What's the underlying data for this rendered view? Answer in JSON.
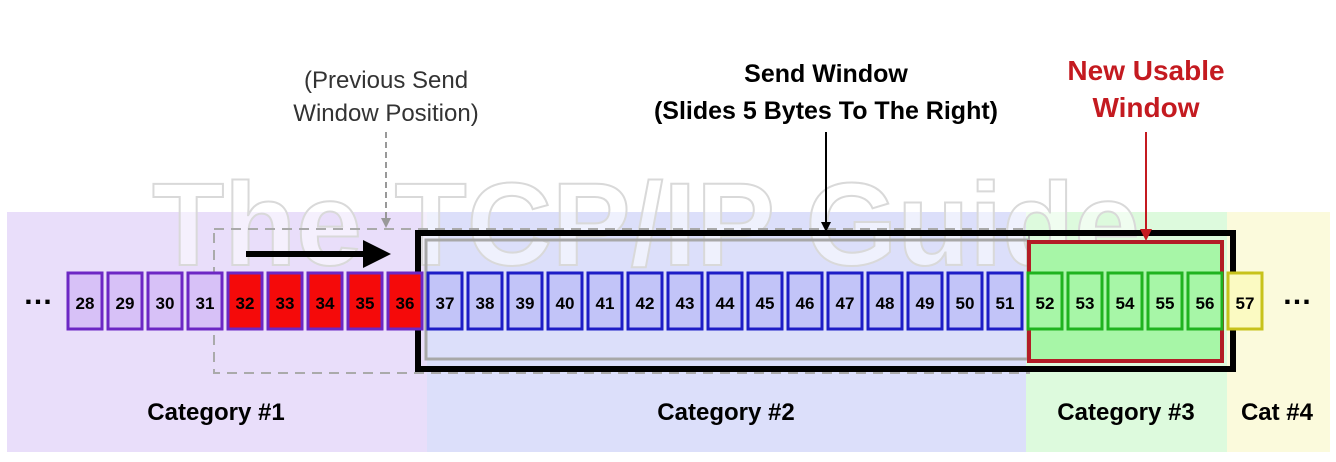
{
  "watermark": "The TCP/IP Guide",
  "labels": {
    "previous_line1": "(Previous Send",
    "previous_line2": "Window Position)",
    "send_line1": "Send Window",
    "send_line2": "(Slides 5 Bytes To The Right)",
    "usable_line1": "New Usable",
    "usable_line2": "Window"
  },
  "ellipsis": {
    "left": "…",
    "right": "…"
  },
  "categories": [
    {
      "label": "Category #1",
      "bg": "#e9defa"
    },
    {
      "label": "Category #2",
      "bg": "#dcdffa"
    },
    {
      "label": "Category #3",
      "bg": "#ddfadd"
    },
    {
      "label": "Cat #4",
      "bg": "#fbfadc"
    }
  ],
  "byte_groups": [
    {
      "name": "cat1-sent-acked",
      "start": 28,
      "end": 31,
      "fill": "#d7c1f7",
      "stroke": "#6c27c4"
    },
    {
      "name": "cat1-newly-acked",
      "start": 32,
      "end": 36,
      "fill": "#f50a0a",
      "stroke": "#6c27c4"
    },
    {
      "name": "cat2-sent-unacked",
      "start": 37,
      "end": 51,
      "fill": "#c2c4f8",
      "stroke": "#1d1dc6"
    },
    {
      "name": "cat3-usable",
      "start": 52,
      "end": 56,
      "fill": "#a7f6a7",
      "stroke": "#1fb31f"
    },
    {
      "name": "cat4-not-sendable",
      "start": 57,
      "end": 57,
      "fill": "#fbfac2",
      "stroke": "#c7c21b"
    }
  ],
  "colors": {
    "send_window_border": "#000000",
    "send_window_inner": "#a8a8a8",
    "usable_window_border": "#b31c26",
    "usable_window_fill": "#a7f6a7",
    "usable_label": "#c41a20",
    "previous_window_dash": "#aaaaaa",
    "slide_arrow": "#000000",
    "watermark": "#dddddd"
  }
}
